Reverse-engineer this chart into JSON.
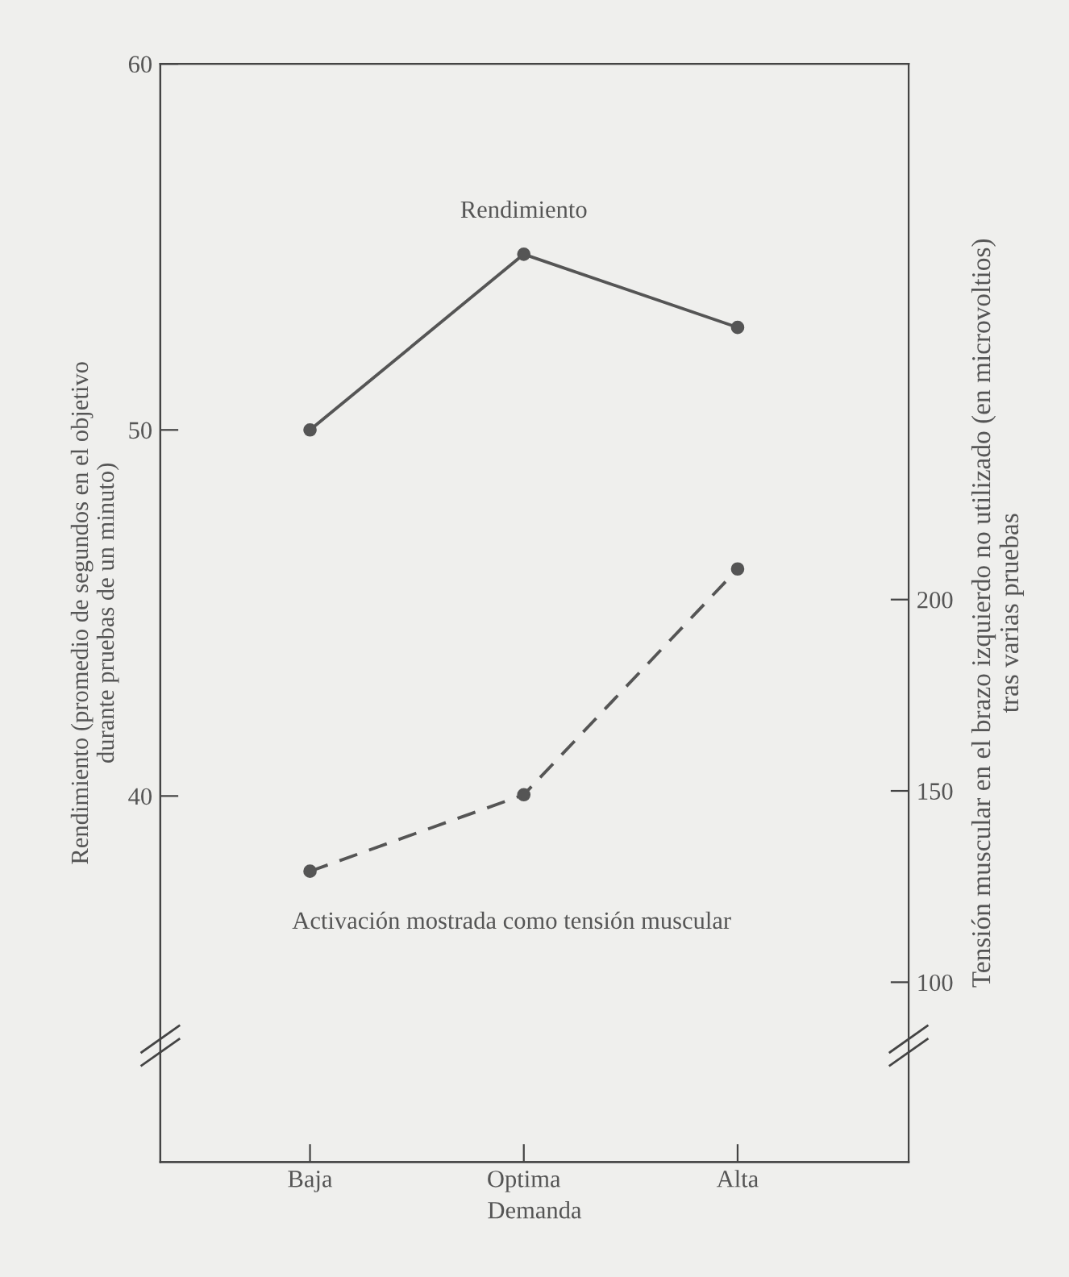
{
  "chart_data": {
    "type": "line",
    "xlabel": "Demanda",
    "ylabel": "Rendimiento (promedio de segundos en el objetivo\ndurante pruebas de un minuto)",
    "y2label": "Tensión muscular en el brazo izquierdo no utilizado (en microvoltios)\ntras varias pruebas",
    "categories": [
      "Baja",
      "Optima",
      "Alta"
    ],
    "series": [
      {
        "name": "Rendimiento",
        "color": "#555555",
        "values": [
          50.0,
          54.8,
          52.8
        ],
        "line_style": "solid"
      },
      {
        "name": "Activación mostrada como tensión muscular",
        "color": "#555555",
        "values": [
          129,
          149,
          208
        ],
        "axis": "y2",
        "line_style": "dashed"
      }
    ],
    "ylim": [
      30,
      60
    ],
    "yticks": [
      40,
      50,
      60
    ],
    "y2lim": [
      53,
      340
    ],
    "y2ticks": [
      100,
      150,
      200
    ],
    "marker": "circle",
    "grid": false,
    "legend": false
  }
}
